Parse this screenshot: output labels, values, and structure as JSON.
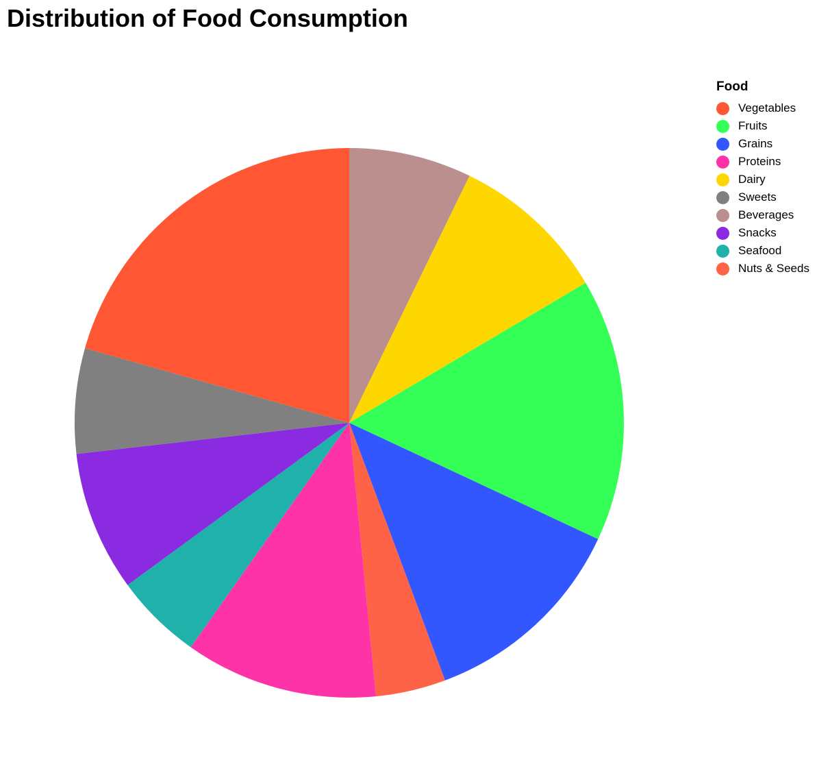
{
  "chart_data": {
    "type": "pie",
    "title": "Distribution of Food Consumption",
    "legend_title": "Food",
    "legend_position": "top-right",
    "categories": [
      "Vegetables",
      "Fruits",
      "Grains",
      "Proteins",
      "Dairy",
      "Sweets",
      "Beverages",
      "Snacks",
      "Seafood",
      "Nuts & Seeds"
    ],
    "values": [
      20,
      15,
      12,
      11,
      9,
      6,
      7,
      8,
      5,
      4
    ],
    "colors": [
      "#ff5733",
      "#33ff57",
      "#3357ff",
      "#ff33a8",
      "#ffd700",
      "#808080",
      "#bc8f8f",
      "#8a2be2",
      "#20b2aa",
      "#ff6347"
    ],
    "draw_order": [
      "Beverages",
      "Dairy",
      "Fruits",
      "Grains",
      "Nuts & Seeds",
      "Proteins",
      "Seafood",
      "Snacks",
      "Sweets",
      "Vegetables"
    ]
  }
}
